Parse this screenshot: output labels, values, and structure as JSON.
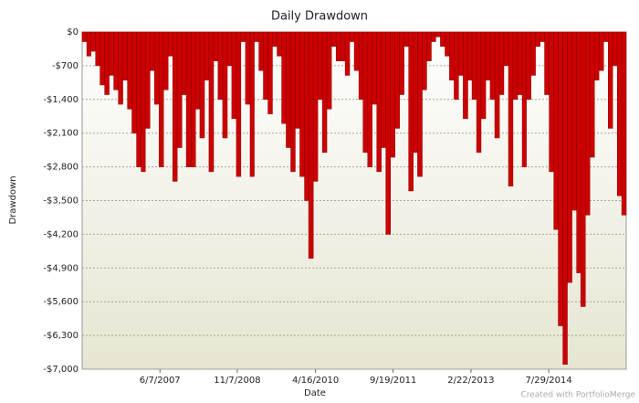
{
  "chart_data": {
    "type": "drawdown-bar",
    "title": "Daily Drawdown",
    "x_label": "Date",
    "y_label": "Drawdown",
    "credit": "Created with PortfolioMerge",
    "x": [
      "1/1/2006",
      "2/1/2006",
      "3/1/2006",
      "4/1/2006",
      "5/1/2006",
      "6/1/2006",
      "7/1/2006",
      "8/1/2006",
      "9/1/2006",
      "10/1/2006",
      "11/1/2006",
      "12/1/2006",
      "1/1/2007",
      "2/1/2007",
      "3/1/2007",
      "4/1/2007",
      "5/1/2007",
      "6/1/2007",
      "7/1/2007",
      "8/1/2007",
      "9/1/2007",
      "10/1/2007",
      "11/1/2007",
      "12/1/2007",
      "1/1/2008",
      "2/1/2008",
      "3/1/2008",
      "4/1/2008",
      "5/1/2008",
      "6/1/2008",
      "7/1/2008",
      "8/1/2008",
      "9/1/2008",
      "10/1/2008",
      "11/1/2008",
      "12/1/2008",
      "1/1/2009",
      "2/1/2009",
      "3/1/2009",
      "4/1/2009",
      "5/1/2009",
      "6/1/2009",
      "7/1/2009",
      "8/1/2009",
      "9/1/2009",
      "10/1/2009",
      "11/1/2009",
      "12/1/2009",
      "1/1/2010",
      "2/1/2010",
      "3/1/2010",
      "4/1/2010",
      "5/1/2010",
      "6/1/2010",
      "7/1/2010",
      "8/1/2010",
      "9/1/2010",
      "10/1/2010",
      "11/1/2010",
      "12/1/2010",
      "1/1/2011",
      "2/1/2011",
      "3/1/2011",
      "4/1/2011",
      "5/1/2011",
      "6/1/2011",
      "7/1/2011",
      "8/1/2011",
      "9/1/2011",
      "10/1/2011",
      "11/1/2011",
      "12/1/2011",
      "1/1/2012",
      "2/1/2012",
      "3/1/2012",
      "4/1/2012",
      "5/1/2012",
      "6/1/2012",
      "7/1/2012",
      "8/1/2012",
      "9/1/2012",
      "10/1/2012",
      "11/1/2012",
      "12/1/2012",
      "1/1/2013",
      "2/1/2013",
      "3/1/2013",
      "4/1/2013",
      "5/1/2013",
      "6/1/2013",
      "7/1/2013",
      "8/1/2013",
      "9/1/2013",
      "10/1/2013",
      "11/1/2013",
      "12/1/2013",
      "1/1/2014",
      "2/1/2014",
      "3/1/2014",
      "4/1/2014",
      "5/1/2014",
      "6/1/2014",
      "7/1/2014",
      "8/1/2014",
      "9/1/2014",
      "10/1/2014",
      "11/1/2014",
      "12/1/2014",
      "1/1/2015",
      "2/1/2015",
      "3/1/2015",
      "4/1/2015",
      "5/1/2015",
      "6/1/2015",
      "7/1/2015",
      "8/1/2015",
      "9/1/2015",
      "10/1/2015",
      "11/1/2015",
      "12/1/2015"
    ],
    "values": [
      -200,
      -500,
      -400,
      -700,
      -1100,
      -1300,
      -900,
      -1200,
      -1500,
      -1000,
      -1600,
      -2100,
      -2800,
      -2900,
      -2000,
      -800,
      -1500,
      -2800,
      -1200,
      -500,
      -3100,
      -2400,
      -1300,
      -2800,
      -2800,
      -1600,
      -2200,
      -1000,
      -2900,
      -600,
      -1400,
      -2200,
      -700,
      -1800,
      -3000,
      -200,
      -1500,
      -3000,
      -200,
      -800,
      -1400,
      -1700,
      -300,
      -500,
      -1900,
      -2400,
      -2900,
      -2000,
      -3000,
      -3500,
      -4700,
      -3100,
      -1400,
      -2500,
      -1600,
      -300,
      -600,
      -600,
      -900,
      -200,
      -800,
      -1400,
      -2500,
      -2800,
      -1500,
      -2900,
      -2400,
      -4200,
      -2600,
      -2000,
      -1300,
      -300,
      -3300,
      -2500,
      -3000,
      -1200,
      -600,
      -200,
      -100,
      -300,
      -500,
      -1000,
      -1400,
      -900,
      -1800,
      -1000,
      -1400,
      -2500,
      -1800,
      -1000,
      -1400,
      -2200,
      -1300,
      -700,
      -3200,
      -1400,
      -1300,
      -2800,
      -1400,
      -900,
      -300,
      -200,
      -1300,
      -2900,
      -4100,
      -6100,
      -6900,
      -5200,
      -3700,
      -5000,
      -5700,
      -3800,
      -2600,
      -1000,
      -800,
      -200,
      -2000,
      -700,
      -3400,
      -3800
    ],
    "color": "#cc0000",
    "xlim": [
      "1/1/2006",
      "12/31/2015"
    ],
    "xticks": [
      "6/7/2007",
      "11/7/2008",
      "4/16/2010",
      "9/19/2011",
      "2/22/2013",
      "7/29/2014"
    ],
    "ylim": [
      -7000,
      0
    ],
    "yticks": [
      {
        "value": 0,
        "label": "$0"
      },
      {
        "value": -700,
        "label": "-$700"
      },
      {
        "value": -1400,
        "label": "-$1,400"
      },
      {
        "value": -2100,
        "label": "-$2,100"
      },
      {
        "value": -2800,
        "label": "-$2,800"
      },
      {
        "value": -3500,
        "label": "-$3,500"
      },
      {
        "value": -4200,
        "label": "-$4,200"
      },
      {
        "value": -4900,
        "label": "-$4,900"
      },
      {
        "value": -5600,
        "label": "-$5,600"
      },
      {
        "value": -6300,
        "label": "-$6,300"
      },
      {
        "value": -7000,
        "label": "-$7,000"
      }
    ],
    "grid": true
  }
}
